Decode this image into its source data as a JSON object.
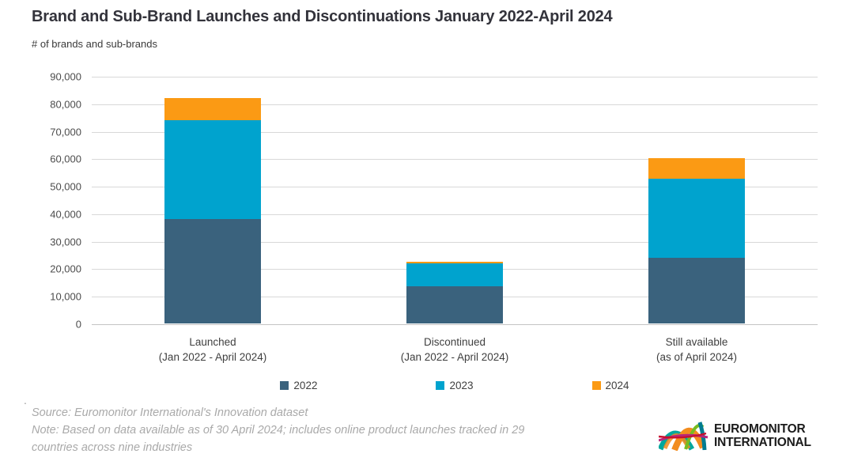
{
  "header": {
    "title": "Brand and Sub-Brand Launches and Discontinuations January 2022-April 2024",
    "subtitle": "# of brands and sub-brands"
  },
  "chart_data": {
    "type": "bar",
    "subtype": "stacked",
    "categories": [
      {
        "line1": "Launched",
        "line2": "(Jan 2022 - April 2024)"
      },
      {
        "line1": "Discontinued",
        "line2": "(Jan 2022 - April 2024)"
      },
      {
        "line1": "Still available",
        "line2": "(as of April 2024)"
      }
    ],
    "series": [
      {
        "name": "2022",
        "color": "#3A627D",
        "values": [
          38000,
          13400,
          24000
        ]
      },
      {
        "name": "2023",
        "color": "#00A3CE",
        "values": [
          36000,
          8600,
          28500
        ]
      },
      {
        "name": "2024",
        "color": "#FB9A14",
        "values": [
          8000,
          300,
          7500
        ]
      }
    ],
    "ylim": [
      0,
      90000
    ],
    "ytick_step": 10000,
    "ytick_labels": [
      "0",
      "10,000",
      "20,000",
      "30,000",
      "40,000",
      "50,000",
      "60,000",
      "70,000",
      "80,000",
      "90,000"
    ],
    "grid": "horizontal",
    "legend_position": "bottom"
  },
  "footnote": {
    "stray_dot": ".",
    "source": "Source: Euromonitor International's Innovation dataset",
    "note_line1": "Note: Based on data available as of 30 April 2024; includes online product launches tracked in 29",
    "note_line2": "countries across nine industries"
  },
  "logo": {
    "line1": "EUROMONITOR",
    "line2": "INTERNATIONAL",
    "colors": {
      "orange": "#F28C1E",
      "teal": "#00A79D",
      "dark_teal": "#007C91",
      "green": "#76BC21",
      "magenta": "#B9257A",
      "crimson": "#C8102E"
    }
  }
}
